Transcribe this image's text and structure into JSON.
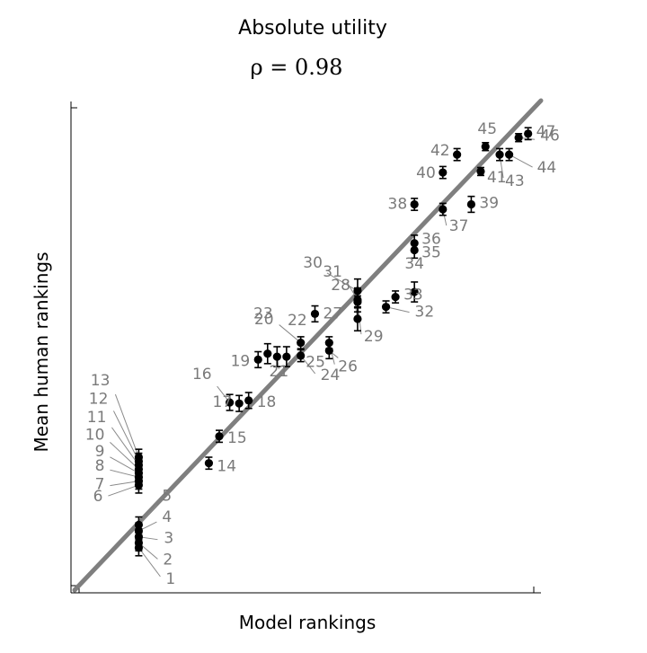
{
  "chart_data": {
    "type": "scatter",
    "title": "Absolute utility",
    "subtitle": "ρ = 0.98",
    "xlabel": "Model rankings",
    "ylabel": "Mean human rankings",
    "xlim": [
      0,
      48
    ],
    "ylim": [
      0,
      48
    ],
    "grid": false,
    "legend": "none",
    "colors": {
      "points": "#000000",
      "identity_line": "#7f7f7f",
      "labels": "#7a7a7a"
    },
    "points": [
      {
        "id": 1,
        "x": 6.3,
        "y": 3.8,
        "err": 0.8
      },
      {
        "id": 2,
        "x": 6.3,
        "y": 4.3,
        "err": 0.8
      },
      {
        "id": 3,
        "x": 6.3,
        "y": 4.9,
        "err": 0.8
      },
      {
        "id": 4,
        "x": 6.3,
        "y": 5.5,
        "err": 0.8
      },
      {
        "id": 5,
        "x": 6.3,
        "y": 6.1,
        "err": 0.8
      },
      {
        "id": 6,
        "x": 6.3,
        "y": 10.1,
        "err": 0.8
      },
      {
        "id": 7,
        "x": 6.3,
        "y": 10.5,
        "err": 0.8
      },
      {
        "id": 8,
        "x": 6.3,
        "y": 10.9,
        "err": 0.8
      },
      {
        "id": 9,
        "x": 6.3,
        "y": 11.3,
        "err": 0.8
      },
      {
        "id": 10,
        "x": 6.3,
        "y": 11.7,
        "err": 0.8
      },
      {
        "id": 11,
        "x": 6.3,
        "y": 12.1,
        "err": 0.8
      },
      {
        "id": 12,
        "x": 6.3,
        "y": 12.5,
        "err": 0.8
      },
      {
        "id": 13,
        "x": 6.3,
        "y": 12.9,
        "err": 0.8
      },
      {
        "id": 14,
        "x": 13.7,
        "y": 12.3,
        "err": 0.6
      },
      {
        "id": 15,
        "x": 14.8,
        "y": 15.0,
        "err": 0.6
      },
      {
        "id": 16,
        "x": 15.9,
        "y": 18.4,
        "err": 0.8
      },
      {
        "id": 17,
        "x": 16.9,
        "y": 18.3,
        "err": 0.8
      },
      {
        "id": 18,
        "x": 17.9,
        "y": 18.6,
        "err": 0.8
      },
      {
        "id": 19,
        "x": 18.9,
        "y": 22.7,
        "err": 0.8
      },
      {
        "id": 20,
        "x": 19.9,
        "y": 23.3,
        "err": 1.0
      },
      {
        "id": 21,
        "x": 20.9,
        "y": 23.0,
        "err": 1.0
      },
      {
        "id": 22,
        "x": 21.9,
        "y": 23.0,
        "err": 1.0
      },
      {
        "id": 23,
        "x": 23.4,
        "y": 24.4,
        "err": 0.6
      },
      {
        "id": 24,
        "x": 23.4,
        "y": 23.1,
        "err": 0.6
      },
      {
        "id": 25,
        "x": 26.4,
        "y": 23.6,
        "err": 0.8
      },
      {
        "id": 26,
        "x": 26.4,
        "y": 24.4,
        "err": 0.6
      },
      {
        "id": 27,
        "x": 24.9,
        "y": 27.3,
        "err": 0.8
      },
      {
        "id": 28,
        "x": 29.4,
        "y": 26.8,
        "err": 1.2
      },
      {
        "id": 29,
        "x": 29.4,
        "y": 28.5,
        "err": 0.6
      },
      {
        "id": 30,
        "x": 29.4,
        "y": 29.6,
        "err": 1.2
      },
      {
        "id": 31,
        "x": 29.4,
        "y": 28.7,
        "err": 1.2
      },
      {
        "id": 32,
        "x": 32.4,
        "y": 28.0,
        "err": 0.6
      },
      {
        "id": 33,
        "x": 33.4,
        "y": 29.0,
        "err": 0.6
      },
      {
        "id": 34,
        "x": 35.4,
        "y": 29.5,
        "err": 1.0
      },
      {
        "id": 35,
        "x": 35.4,
        "y": 33.7,
        "err": 0.8
      },
      {
        "id": 36,
        "x": 35.4,
        "y": 34.4,
        "err": 0.8
      },
      {
        "id": 37,
        "x": 38.4,
        "y": 37.8,
        "err": 0.6
      },
      {
        "id": 38,
        "x": 35.4,
        "y": 38.3,
        "err": 0.6
      },
      {
        "id": 39,
        "x": 41.4,
        "y": 38.3,
        "err": 0.8
      },
      {
        "id": 40,
        "x": 38.4,
        "y": 41.5,
        "err": 0.6
      },
      {
        "id": 41,
        "x": 42.4,
        "y": 41.6,
        "err": 0.4
      },
      {
        "id": 42,
        "x": 39.9,
        "y": 43.3,
        "err": 0.6
      },
      {
        "id": 43,
        "x": 44.4,
        "y": 43.3,
        "err": 0.6
      },
      {
        "id": 44,
        "x": 45.4,
        "y": 43.3,
        "err": 0.6
      },
      {
        "id": 45,
        "x": 42.9,
        "y": 44.1,
        "err": 0.4
      },
      {
        "id": 46,
        "x": 46.4,
        "y": 45.0,
        "err": 0.4
      },
      {
        "id": 47,
        "x": 47.4,
        "y": 45.4,
        "err": 0.6
      }
    ]
  }
}
